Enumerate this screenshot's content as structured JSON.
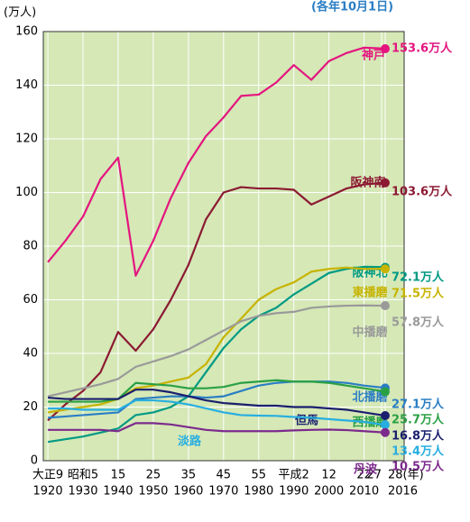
{
  "chart_data": {
    "type": "line",
    "y_unit_label": "(万人)",
    "subtitle": "(各年10月1日)",
    "x": [
      1920,
      1925,
      1930,
      1935,
      1940,
      1945,
      1950,
      1955,
      1960,
      1965,
      1970,
      1975,
      1980,
      1985,
      1990,
      1995,
      2000,
      2005,
      2010,
      2015,
      2016
    ],
    "xlim": [
      1918.7,
      2021.4
    ],
    "ylim": [
      0,
      160
    ],
    "yticks": [
      0,
      20,
      40,
      60,
      80,
      100,
      120,
      140,
      160
    ],
    "xticks": [
      {
        "value": 1920,
        "label": "大正9"
      },
      {
        "value": 1930,
        "label": "昭和5"
      },
      {
        "value": 1940,
        "label": "15"
      },
      {
        "value": 1950,
        "label": "25"
      },
      {
        "value": 1960,
        "label": "35"
      },
      {
        "value": 1970,
        "label": "45"
      },
      {
        "value": 1980,
        "label": "55"
      },
      {
        "value": 1990,
        "label": "平成2"
      },
      {
        "value": 2000,
        "label": "12"
      },
      {
        "value": 2010,
        "label": "22"
      },
      {
        "value": 2015,
        "label": "27"
      },
      {
        "value": 2016,
        "label": "28(年)"
      }
    ],
    "xticks_western": [
      1920,
      1930,
      1940,
      1950,
      1960,
      1970,
      1980,
      1990,
      2000,
      2010,
      2016
    ],
    "grid": true,
    "series": [
      {
        "name": "神戸",
        "color": "#e4157f",
        "values": [
          74,
          82,
          91,
          105,
          113,
          69,
          82,
          98,
          111,
          121,
          128,
          136,
          136.5,
          141,
          147.5,
          142,
          149,
          152,
          154,
          153.7,
          153.6
        ],
        "value_labels": [
          null,
          null,
          null,
          null,
          null,
          null,
          null,
          null,
          null,
          null,
          null,
          null,
          null,
          null,
          null,
          null,
          null,
          null,
          null,
          null,
          "153.6万人"
        ]
      },
      {
        "name": "阪神南",
        "color": "#8c1a33",
        "values": [
          15,
          21,
          26,
          33,
          48,
          41,
          49,
          60,
          73,
          90,
          100,
          102,
          101.5,
          101.5,
          101,
          95.5,
          98.5,
          101.5,
          103,
          103.5,
          103.6
        ],
        "value_labels": [
          null,
          null,
          null,
          null,
          null,
          null,
          null,
          null,
          null,
          null,
          null,
          null,
          null,
          null,
          null,
          null,
          null,
          null,
          null,
          null,
          "103.6万人"
        ]
      },
      {
        "name": "阪神北",
        "color": "#009a83",
        "values": [
          7,
          8,
          9,
          10.5,
          12,
          17,
          18,
          20,
          24,
          33,
          42,
          49,
          54,
          57,
          62,
          66,
          70,
          71.5,
          72.3,
          72.2,
          72.1
        ],
        "value_labels": [
          null,
          null,
          null,
          null,
          null,
          null,
          null,
          null,
          null,
          null,
          null,
          null,
          null,
          null,
          null,
          null,
          null,
          null,
          null,
          null,
          "72.1万人"
        ]
      },
      {
        "name": "東播磨",
        "color": "#c7b300",
        "values": [
          18,
          19,
          20,
          21,
          23,
          27,
          28,
          29.5,
          31,
          36,
          46,
          53,
          60,
          64,
          66.5,
          70.5,
          71.5,
          72,
          71.5,
          71.6,
          71.5
        ],
        "value_labels": [
          null,
          null,
          null,
          null,
          null,
          null,
          null,
          null,
          null,
          null,
          null,
          null,
          null,
          null,
          null,
          null,
          null,
          null,
          null,
          null,
          "71.5万人"
        ]
      },
      {
        "name": "中播磨",
        "color": "#9a9a9a",
        "values": [
          24,
          25.5,
          27,
          28.5,
          30.5,
          35,
          37,
          39,
          41.5,
          45,
          48.5,
          52,
          54,
          55,
          55.5,
          57,
          57.5,
          57.8,
          57.9,
          57.8,
          57.8
        ],
        "value_labels": [
          null,
          null,
          null,
          null,
          null,
          null,
          null,
          null,
          null,
          null,
          null,
          null,
          null,
          null,
          null,
          null,
          null,
          null,
          null,
          null,
          "57.8万人"
        ]
      },
      {
        "name": "北播磨",
        "color": "#2a7ec4",
        "values": [
          16,
          16.5,
          17,
          17.5,
          18,
          23,
          23.5,
          24,
          24,
          23.5,
          24,
          26,
          28,
          29,
          29.5,
          29.5,
          29.5,
          29,
          28,
          27.3,
          27.1
        ],
        "value_labels": [
          null,
          null,
          null,
          null,
          null,
          null,
          null,
          null,
          null,
          null,
          null,
          null,
          null,
          null,
          null,
          null,
          null,
          null,
          null,
          null,
          "27.1万人"
        ]
      },
      {
        "name": "西播磨",
        "color": "#2aa044",
        "values": [
          22,
          22,
          22,
          22,
          23,
          29,
          28.5,
          28,
          27,
          27,
          27.5,
          29,
          29.5,
          30,
          29.5,
          29.5,
          29,
          28,
          27,
          26,
          25.7
        ],
        "value_labels": [
          null,
          null,
          null,
          null,
          null,
          null,
          null,
          null,
          null,
          null,
          null,
          null,
          null,
          null,
          null,
          null,
          null,
          null,
          null,
          null,
          "25.7万人"
        ]
      },
      {
        "name": "但馬",
        "color": "#1a1f6e",
        "values": [
          23.5,
          23,
          23,
          23,
          23,
          26.5,
          26.5,
          25.5,
          24,
          22.5,
          21.5,
          21,
          20.5,
          20.5,
          20,
          20,
          19.5,
          19,
          18,
          17,
          16.8
        ],
        "value_labels": [
          null,
          null,
          null,
          null,
          null,
          null,
          null,
          null,
          null,
          null,
          null,
          null,
          null,
          null,
          null,
          null,
          null,
          null,
          null,
          null,
          "16.8万人"
        ]
      },
      {
        "name": "淡路",
        "color": "#28aee0",
        "values": [
          19.5,
          19.5,
          19,
          19,
          19,
          22.5,
          22.5,
          22,
          21,
          19.5,
          18,
          17,
          16.8,
          16.7,
          16.3,
          16,
          15.5,
          15,
          14.5,
          13.5,
          13.4
        ],
        "value_labels": [
          null,
          null,
          null,
          null,
          null,
          null,
          null,
          null,
          null,
          null,
          null,
          null,
          null,
          null,
          null,
          null,
          null,
          null,
          null,
          null,
          "13.4万人"
        ]
      },
      {
        "name": "丹波",
        "color": "#7c2a8c",
        "values": [
          11.5,
          11.5,
          11.5,
          11.5,
          11,
          14,
          14,
          13.5,
          12.5,
          11.5,
          11,
          11,
          11,
          11,
          11.3,
          11.5,
          11.6,
          11.4,
          11,
          10.6,
          10.5
        ],
        "value_labels": [
          null,
          null,
          null,
          null,
          null,
          null,
          null,
          null,
          null,
          null,
          null,
          null,
          null,
          null,
          null,
          null,
          null,
          null,
          null,
          null,
          "10.5万人"
        ]
      }
    ]
  }
}
